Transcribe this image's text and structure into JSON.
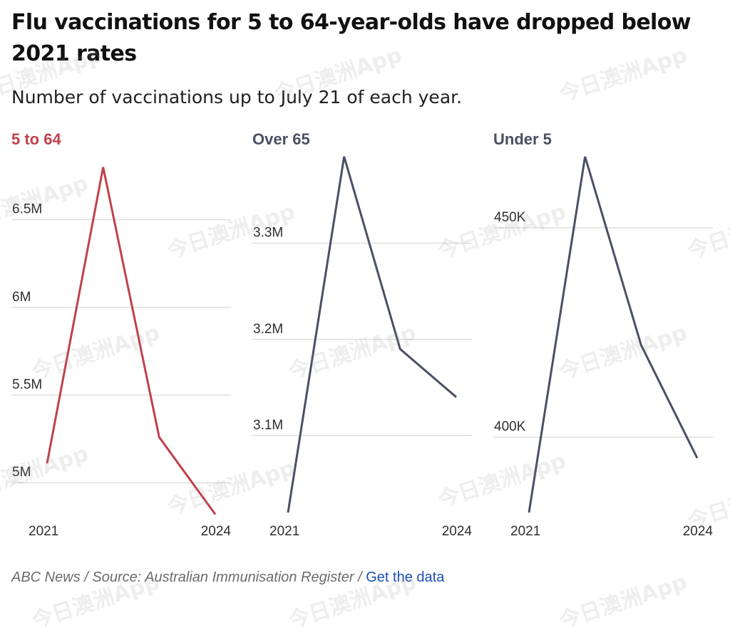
{
  "title": "Flu vaccinations for 5 to 64-year-olds have dropped below 2021 rates",
  "subtitle": "Number of vaccinations up to July 21 of each year.",
  "footer": {
    "source": "ABC News / Source: Australian Immunisation Register / ",
    "link": "Get the data"
  },
  "watermark": "今日澳洲App",
  "colors": {
    "highlight": "#c0414b",
    "series": "#4a5064",
    "grid": "#d9d9d9",
    "text": "#2e2e2e"
  },
  "chart_data": [
    {
      "type": "line",
      "title": "5 to 64",
      "x": [
        2021,
        2022,
        2023,
        2024
      ],
      "x_tick_labels": [
        "2021",
        "2024"
      ],
      "values": [
        5110000,
        6800000,
        5260000,
        4820000
      ],
      "ylim": [
        4830000,
        6860000
      ],
      "yticks": [
        5000000,
        5500000,
        6000000,
        6500000
      ],
      "ytick_labels": [
        "5M",
        "5.5M",
        "6M",
        "6.5M"
      ],
      "color": "#c0414b",
      "grid": true
    },
    {
      "type": "line",
      "title": "Over 65",
      "x": [
        2021,
        2022,
        2023,
        2024
      ],
      "x_tick_labels": [
        "2021",
        "2024"
      ],
      "values": [
        3020000,
        3390000,
        3190000,
        3140000
      ],
      "ylim": [
        3020000,
        3390000
      ],
      "yticks": [
        3100000,
        3200000,
        3300000
      ],
      "ytick_labels": [
        "3.1M",
        "3.2M",
        "3.3M"
      ],
      "color": "#4a5064",
      "grid": true
    },
    {
      "type": "line",
      "title": "Under 5",
      "x": [
        2021,
        2022,
        2023,
        2024
      ],
      "x_tick_labels": [
        "2021",
        "2024"
      ],
      "values": [
        382000,
        467000,
        422000,
        395000
      ],
      "ylim": [
        382000,
        467000
      ],
      "yticks": [
        400000,
        450000
      ],
      "ytick_labels": [
        "400K",
        "450K"
      ],
      "color": "#4a5064",
      "grid": true
    }
  ]
}
